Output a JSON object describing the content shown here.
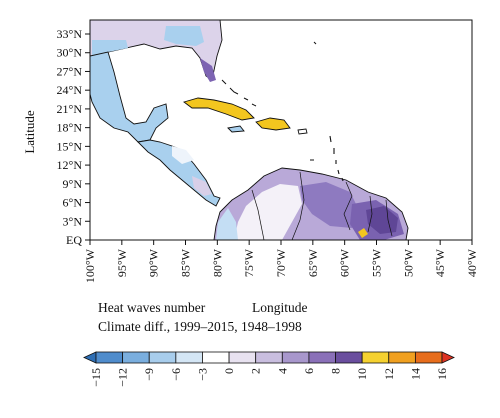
{
  "map": {
    "y_axis_title": "Latitude",
    "lat_ticks": [
      "33°N",
      "30°N",
      "27°N",
      "24°N",
      "21°N",
      "18°N",
      "15°N",
      "12°N",
      "9°N",
      "6°N",
      "3°N",
      "EQ"
    ],
    "lon_ticks": [
      "100°W",
      "95°W",
      "90°W",
      "85°W",
      "80°W",
      "75°W",
      "70°W",
      "65°W",
      "60°W",
      "55°W",
      "50°W",
      "45°W",
      "40°W"
    ]
  },
  "caption": {
    "variable": "Heat waves number",
    "x_axis_title": "Longitude",
    "subtitle": "Climate diff., 1999–2015, 1948–1998"
  },
  "colorbar": {
    "labels": [
      "−15",
      "−12",
      "−9",
      "−6",
      "−3",
      "0",
      "2",
      "4",
      "6",
      "8",
      "10",
      "12",
      "14",
      "16"
    ],
    "colors": [
      "#2e6eb4",
      "#4f8ccc",
      "#7aaede",
      "#a8cdec",
      "#d4e6f5",
      "#ffffff",
      "#e8e2f0",
      "#c9bedf",
      "#a897cc",
      "#8a70b8",
      "#6a4e9e",
      "#f5d130",
      "#f0a020",
      "#e76d1c",
      "#dd3322"
    ]
  },
  "colors": {
    "coast": "#111111",
    "land_blue": "#a9d0ee",
    "land_purple": "#8e7ac0",
    "land_lavender": "#d8cfe8",
    "warm_yellow": "#f3c61f"
  }
}
